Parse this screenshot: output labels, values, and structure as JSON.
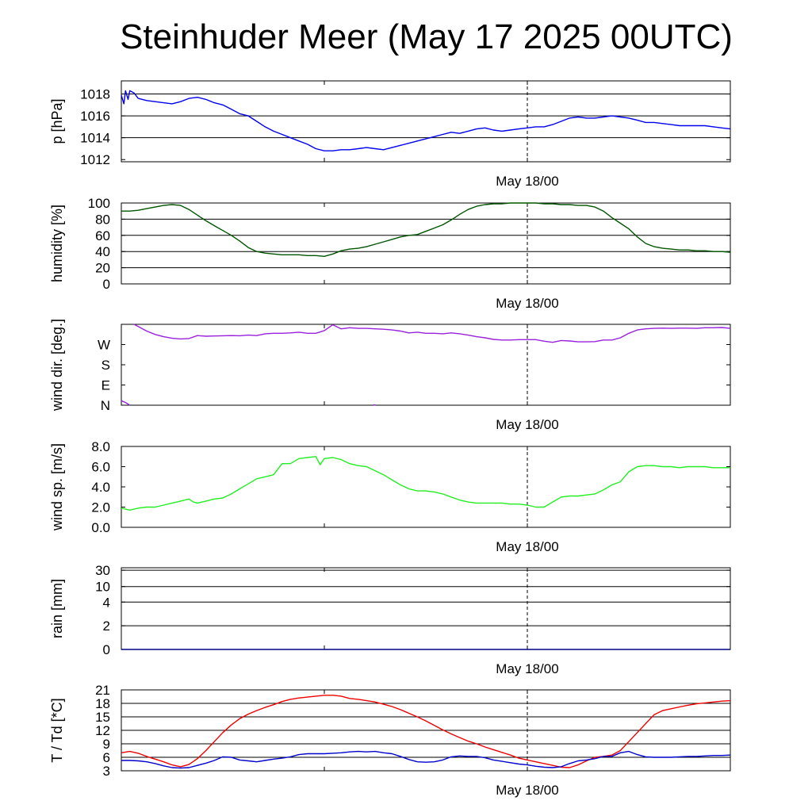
{
  "title": "Steinhuder Meer (May 17 2025 00UTC)",
  "chart_data": [
    {
      "type": "line",
      "ylabel": "p [hPa]",
      "xlabel": "May 18/00",
      "ylim": [
        1011.8,
        1019.2
      ],
      "yticks": [
        1012,
        1014,
        1016,
        1018
      ],
      "ytick_labels": [
        "1012",
        "1014",
        "1016",
        "1018"
      ],
      "hgrid": [
        1014,
        1016,
        1018
      ],
      "xlim": [
        0,
        72
      ],
      "series": [
        {
          "color": "#0000ee",
          "x": [
            0,
            0.3,
            0.5,
            0.8,
            1,
            1.5,
            2,
            3,
            4,
            5,
            6,
            7,
            8,
            9,
            10,
            11,
            12,
            13,
            14,
            15,
            16,
            17,
            18,
            19,
            20,
            21,
            22,
            23,
            24,
            25,
            26,
            27,
            28,
            29,
            30,
            31,
            32,
            33,
            34,
            35,
            36,
            37,
            38,
            39,
            40,
            41,
            42,
            43,
            44,
            45,
            46,
            47,
            48,
            49,
            50,
            51,
            52,
            53,
            54,
            55,
            56,
            57,
            58,
            59,
            60,
            61,
            62,
            63,
            64,
            65,
            66,
            67,
            68,
            69,
            70,
            71,
            72
          ],
          "y": [
            1017.9,
            1017.1,
            1018.3,
            1017.5,
            1018.3,
            1018.1,
            1017.6,
            1017.4,
            1017.3,
            1017.2,
            1017.1,
            1017.3,
            1017.6,
            1017.7,
            1017.5,
            1017.2,
            1017.0,
            1016.6,
            1016.2,
            1016.0,
            1015.5,
            1015.0,
            1014.6,
            1014.3,
            1014.0,
            1013.7,
            1013.4,
            1013.0,
            1012.8,
            1012.8,
            1012.9,
            1012.9,
            1013.0,
            1013.1,
            1013.0,
            1012.9,
            1013.1,
            1013.3,
            1013.5,
            1013.7,
            1013.9,
            1014.1,
            1014.3,
            1014.5,
            1014.4,
            1014.6,
            1014.8,
            1014.9,
            1014.7,
            1014.6,
            1014.7,
            1014.8,
            1014.9,
            1015.0,
            1015.0,
            1015.2,
            1015.5,
            1015.8,
            1015.9,
            1015.8,
            1015.8,
            1015.9,
            1016.0,
            1015.9,
            1015.8,
            1015.6,
            1015.4,
            1015.4,
            1015.3,
            1015.2,
            1015.1,
            1015.1,
            1015.1,
            1015.1,
            1015.0,
            1014.9,
            1014.8
          ]
        }
      ]
    },
    {
      "type": "line",
      "ylabel": "humidity [%]",
      "xlabel": "May 18/00",
      "ylim": [
        0,
        100
      ],
      "yticks": [
        0,
        20,
        40,
        60,
        80,
        100
      ],
      "ytick_labels": [
        "0",
        "20",
        "40",
        "60",
        "80",
        "100"
      ],
      "hgrid": [
        20,
        40,
        60,
        80,
        100
      ],
      "xlim": [
        0,
        72
      ],
      "series": [
        {
          "color": "#005500",
          "x": [
            0,
            1,
            2,
            3,
            4,
            5,
            6,
            7,
            8,
            9,
            10,
            11,
            12,
            13,
            14,
            15,
            16,
            17,
            18,
            19,
            20,
            21,
            22,
            23,
            24,
            25,
            26,
            27,
            28,
            29,
            30,
            31,
            32,
            33,
            34,
            35,
            36,
            37,
            38,
            39,
            40,
            41,
            42,
            43,
            44,
            45,
            46,
            47,
            48,
            49,
            50,
            51,
            52,
            53,
            54,
            55,
            56,
            57,
            58,
            59,
            60,
            61,
            62,
            63,
            64,
            65,
            66,
            67,
            68,
            69,
            70,
            71,
            72
          ],
          "y": [
            90,
            90,
            91,
            93,
            95,
            97,
            98,
            97,
            92,
            85,
            78,
            72,
            66,
            60,
            53,
            45,
            40,
            38,
            37,
            36,
            36,
            36,
            35,
            35,
            34,
            37,
            41,
            43,
            44,
            46,
            49,
            52,
            55,
            58,
            60,
            61,
            65,
            69,
            73,
            79,
            86,
            92,
            96,
            98,
            99,
            99,
            100,
            100,
            100,
            100,
            99,
            99,
            98,
            98,
            97,
            97,
            95,
            90,
            82,
            75,
            68,
            58,
            50,
            46,
            44,
            43,
            42,
            42,
            41,
            41,
            40,
            40,
            39
          ]
        }
      ]
    },
    {
      "type": "line",
      "ylabel": "wind dir. [deg.]",
      "xlabel": "May 18/00",
      "ylim": [
        0,
        360
      ],
      "yticks": [
        0,
        90,
        180,
        270
      ],
      "ytick_labels": [
        "N",
        "E",
        "S",
        "W"
      ],
      "hgrid": [],
      "xlim": [
        0,
        72
      ],
      "series": [
        {
          "color": "#9922dd",
          "x": [
            1.5,
            2,
            3,
            4,
            5,
            6,
            7,
            8,
            9,
            10,
            11,
            12,
            13,
            14,
            15,
            16,
            17,
            18,
            19,
            20,
            21,
            22,
            23,
            24,
            25,
            26,
            27,
            28,
            29,
            30,
            31,
            32,
            33,
            34,
            35,
            36,
            37,
            38,
            39,
            40,
            41,
            42,
            43,
            44,
            45,
            46,
            47,
            48,
            49,
            50,
            51,
            52,
            53,
            54,
            55,
            56,
            57,
            58,
            59,
            60,
            61,
            62,
            63,
            64,
            65,
            66,
            67,
            68,
            69,
            70,
            71,
            72
          ],
          "y": [
            360,
            350,
            330,
            315,
            305,
            298,
            295,
            297,
            310,
            307,
            308,
            309,
            310,
            309,
            312,
            310,
            318,
            320,
            320,
            322,
            325,
            320,
            320,
            332,
            358,
            340,
            345,
            342,
            342,
            340,
            338,
            335,
            330,
            322,
            325,
            320,
            320,
            318,
            322,
            318,
            312,
            305,
            300,
            293,
            290,
            290,
            292,
            292,
            292,
            285,
            280,
            288,
            286,
            282,
            282,
            283,
            290,
            290,
            300,
            320,
            335,
            340,
            342,
            343,
            342,
            343,
            343,
            342,
            345,
            345,
            346,
            342
          ]
        },
        {
          "color": "#9922dd",
          "x": [
            0,
            0.5,
            1
          ],
          "y": [
            20,
            12,
            0
          ]
        },
        {
          "color": "#9922dd",
          "x": [
            29.8,
            30.1
          ],
          "y": [
            2,
            0
          ]
        }
      ]
    },
    {
      "type": "line",
      "ylabel": "wind sp. [m/s]",
      "xlabel": "May 18/00",
      "ylim": [
        0,
        8
      ],
      "yticks": [
        0,
        2,
        4,
        6,
        8
      ],
      "ytick_labels": [
        "0.0",
        "2.0",
        "4.0",
        "6.0",
        "8.0"
      ],
      "hgrid": [],
      "xlim": [
        0,
        72
      ],
      "series": [
        {
          "color": "#22ee22",
          "x": [
            0,
            1,
            2,
            3,
            4,
            5,
            6,
            7,
            8,
            8.5,
            9,
            10,
            11,
            12,
            13,
            14,
            15,
            16,
            17,
            18,
            19,
            20,
            21,
            22,
            23,
            23.5,
            24,
            25,
            26,
            27,
            28,
            29,
            30,
            31,
            32,
            33,
            34,
            35,
            36,
            37,
            38,
            39,
            40,
            41,
            42,
            43,
            44,
            45,
            46,
            47,
            48,
            49,
            50,
            51,
            52,
            53,
            54,
            55,
            56,
            57,
            58,
            59,
            60,
            61,
            62,
            63,
            64,
            65,
            66,
            67,
            68,
            69,
            70,
            71,
            72
          ],
          "y": [
            1.9,
            1.7,
            1.9,
            2.0,
            2.0,
            2.2,
            2.4,
            2.6,
            2.8,
            2.5,
            2.4,
            2.6,
            2.8,
            2.9,
            3.3,
            3.8,
            4.3,
            4.8,
            5.0,
            5.2,
            6.3,
            6.3,
            6.8,
            6.9,
            7.0,
            6.2,
            6.8,
            6.9,
            6.7,
            6.3,
            6.1,
            6.0,
            5.6,
            5.2,
            4.7,
            4.2,
            3.8,
            3.6,
            3.6,
            3.5,
            3.3,
            3.0,
            2.7,
            2.5,
            2.4,
            2.4,
            2.4,
            2.4,
            2.3,
            2.3,
            2.2,
            2.0,
            2.0,
            2.5,
            3.0,
            3.1,
            3.1,
            3.2,
            3.3,
            3.7,
            4.2,
            4.5,
            5.5,
            6.0,
            6.1,
            6.1,
            6.0,
            6.0,
            5.9,
            6.0,
            6.0,
            6.0,
            5.9,
            5.9,
            5.9
          ]
        }
      ]
    },
    {
      "type": "line",
      "ylabel": "rain [mm]",
      "xlabel": "May 18/00",
      "ylim": [
        0,
        30
      ],
      "yticks": [
        0,
        2,
        4,
        10,
        30
      ],
      "ytick_labels": [
        "0",
        "2",
        "4",
        "10",
        "30"
      ],
      "hgrid": [
        2,
        4,
        10,
        30
      ],
      "xlim": [
        0,
        72
      ],
      "series": [
        {
          "color": "#000088",
          "x": [
            0,
            30,
            72
          ],
          "y": [
            0,
            0,
            0
          ]
        }
      ]
    },
    {
      "type": "line",
      "ylabel": "T / Td [*C]",
      "xlabel": "May 18/00",
      "ylim": [
        3,
        21
      ],
      "yticks": [
        3,
        6,
        9,
        12,
        15,
        18,
        21
      ],
      "ytick_labels": [
        "3",
        "6",
        "9",
        "12",
        "15",
        "18",
        "21"
      ],
      "hgrid": [
        6,
        9,
        12,
        15,
        18,
        21
      ],
      "xlim": [
        0,
        72
      ],
      "series": [
        {
          "color": "#ee0000",
          "x": [
            0,
            1,
            2,
            3,
            4,
            5,
            6,
            7,
            8,
            9,
            10,
            11,
            12,
            13,
            14,
            15,
            16,
            17,
            18,
            19,
            20,
            21,
            22,
            23,
            24,
            25,
            26,
            27,
            28,
            29,
            30,
            31,
            32,
            33,
            34,
            35,
            36,
            37,
            38,
            39,
            40,
            41,
            42,
            43,
            44,
            45,
            46,
            47,
            48,
            49,
            50,
            51,
            52,
            53,
            54,
            55,
            56,
            57,
            58,
            59,
            60,
            61,
            62,
            63,
            64,
            65,
            66,
            67,
            68,
            69,
            70,
            71,
            72
          ],
          "y": [
            7.0,
            7.3,
            6.9,
            6.2,
            5.6,
            5.0,
            4.3,
            3.9,
            4.4,
            5.7,
            7.5,
            9.5,
            11.5,
            13.2,
            14.6,
            15.6,
            16.4,
            17.1,
            17.7,
            18.4,
            18.9,
            19.2,
            19.4,
            19.6,
            19.8,
            19.8,
            19.6,
            19.1,
            18.9,
            18.6,
            18.3,
            17.8,
            17.3,
            16.6,
            15.8,
            15.0,
            14.1,
            13.1,
            12.1,
            11.2,
            10.4,
            9.6,
            9.0,
            8.3,
            7.7,
            7.1,
            6.5,
            5.8,
            5.4,
            5.0,
            4.6,
            4.2,
            3.8,
            3.7,
            4.3,
            5.2,
            6.0,
            6.2,
            6.5,
            7.5,
            9.5,
            11.5,
            13.5,
            15.5,
            16.4,
            16.8,
            17.2,
            17.6,
            17.9,
            18.1,
            18.3,
            18.5,
            18.6
          ]
        },
        {
          "color": "#0000cc",
          "x": [
            0,
            1,
            2,
            3,
            4,
            5,
            6,
            7,
            8,
            9,
            10,
            11,
            12,
            13,
            14,
            15,
            16,
            17,
            18,
            19,
            20,
            21,
            22,
            23,
            24,
            25,
            26,
            27,
            28,
            29,
            30,
            31,
            32,
            33,
            34,
            35,
            36,
            37,
            38,
            39,
            40,
            41,
            42,
            43,
            44,
            45,
            46,
            47,
            48,
            49,
            50,
            51,
            52,
            53,
            54,
            55,
            56,
            57,
            58,
            59,
            60,
            61,
            62,
            63,
            64,
            65,
            66,
            67,
            68,
            69,
            70,
            71,
            72
          ],
          "y": [
            5.3,
            5.3,
            5.2,
            5.0,
            4.6,
            4.1,
            3.7,
            3.6,
            3.7,
            4.2,
            4.7,
            5.3,
            6.1,
            6.0,
            5.4,
            5.2,
            5.0,
            5.3,
            5.6,
            5.8,
            6.1,
            6.6,
            6.8,
            6.8,
            6.8,
            6.9,
            7.0,
            7.2,
            7.3,
            7.2,
            7.3,
            7.0,
            6.8,
            6.2,
            5.5,
            5.0,
            4.9,
            5.0,
            5.4,
            6.1,
            6.3,
            6.2,
            6.2,
            5.9,
            5.4,
            5.1,
            4.8,
            4.5,
            4.3,
            4.0,
            3.8,
            3.7,
            3.9,
            4.6,
            5.2,
            5.4,
            5.7,
            6.2,
            6.2,
            7.0,
            7.3,
            6.6,
            6.1,
            6.0,
            6.0,
            6.0,
            6.1,
            6.2,
            6.2,
            6.3,
            6.4,
            6.4,
            6.5
          ]
        }
      ]
    }
  ]
}
